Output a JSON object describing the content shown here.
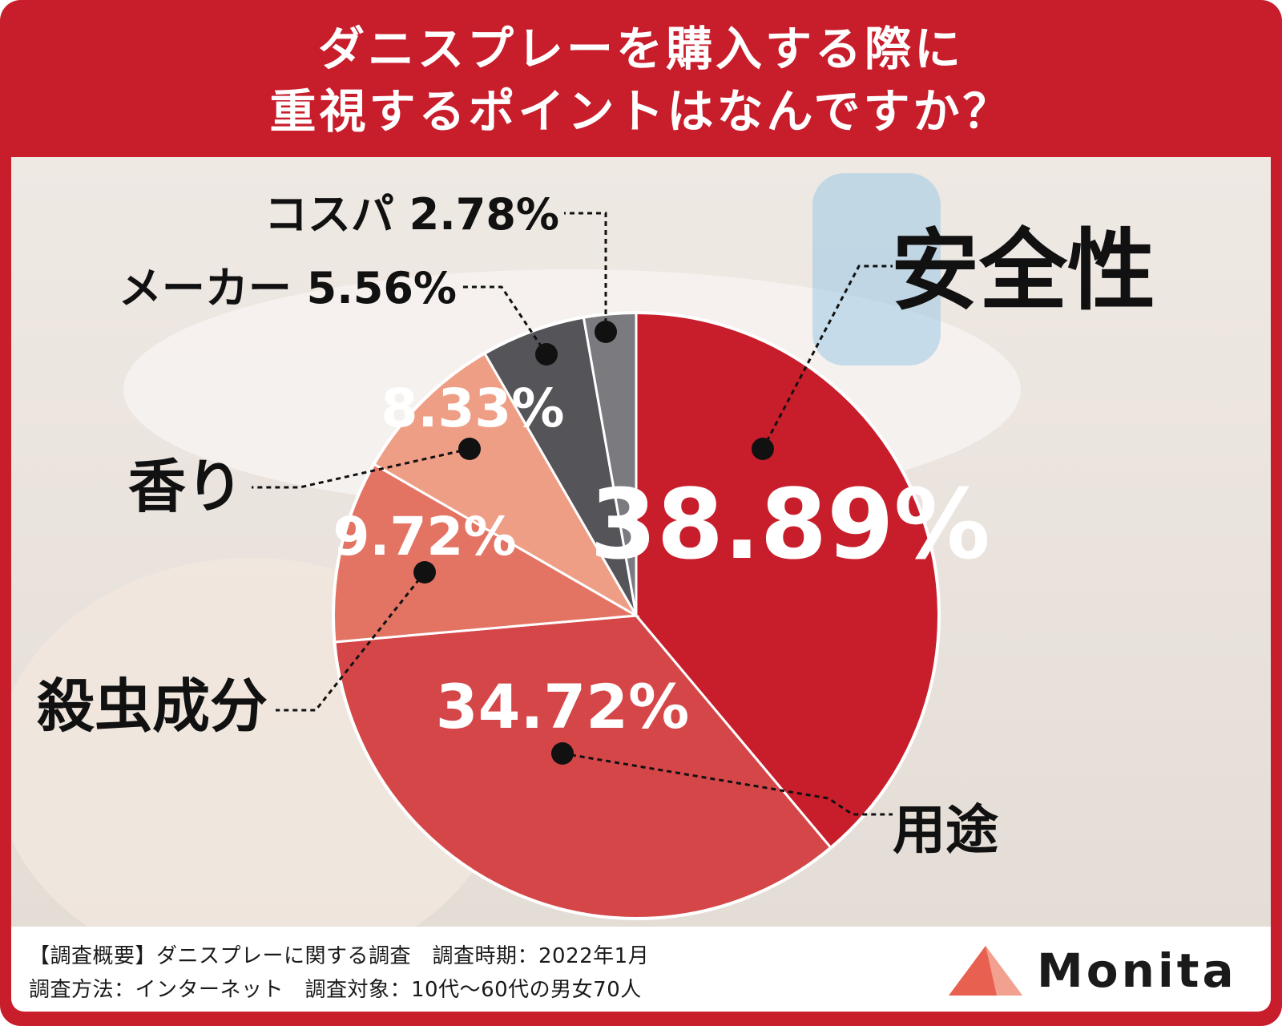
{
  "title": {
    "line1": "ダニスプレーを購入する際に",
    "line2": "重視するポイントはなんですか？"
  },
  "chart_data": {
    "type": "pie",
    "categories": [
      "安全性",
      "用途",
      "殺虫成分",
      "香り",
      "メーカー",
      "コスパ"
    ],
    "values": [
      38.89,
      34.72,
      9.72,
      8.33,
      5.56,
      2.78
    ],
    "value_labels": [
      "38.89%",
      "34.72%",
      "9.72%",
      "8.33%",
      "5.56%",
      "2.78%"
    ],
    "colors": [
      "#c81d2b",
      "#d54648",
      "#e37464",
      "#ef9e86",
      "#555459",
      "#7b7a7f"
    ],
    "title": "ダニスプレーを購入する際に重視するポイントはなんですか？"
  },
  "footer": {
    "note_line1": "【調査概要】ダニスプレーに関する調査　調査時期：2022年1月",
    "note_line2": "調査方法：インターネット　調査対象：10代〜60代の男女70人",
    "brand": "Monita"
  }
}
